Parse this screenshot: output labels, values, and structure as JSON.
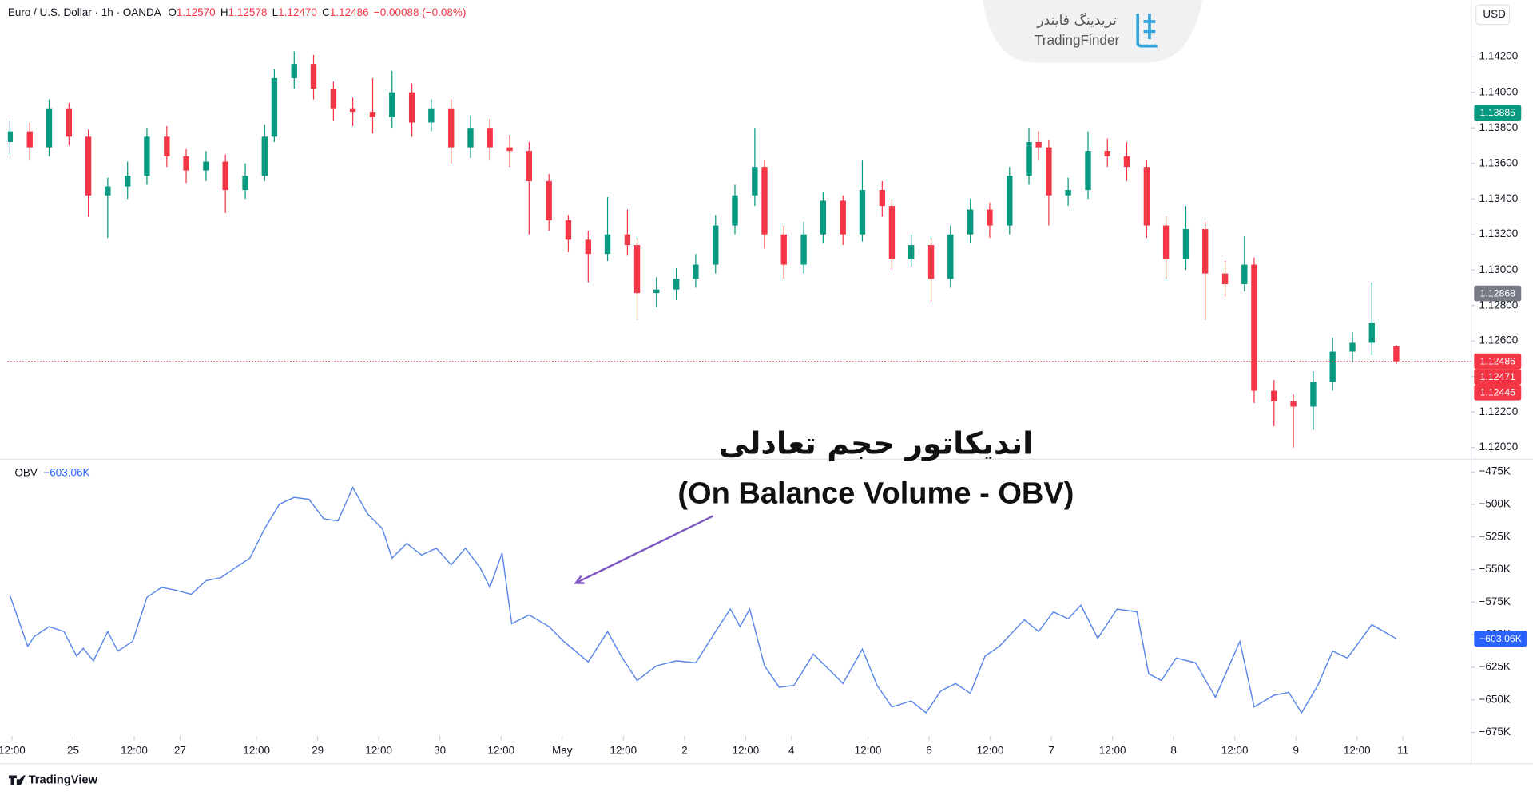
{
  "chart_data": [
    {
      "type": "candlestick",
      "title": "Euro / U.S. Dollar · 1h · OANDA",
      "legend": [
        {
          "name": "O",
          "value": 1.1257,
          "label": "1.12570"
        },
        {
          "name": "H",
          "value": 1.12578,
          "label": "1.12578"
        },
        {
          "name": "L",
          "value": 1.1247,
          "label": "1.12470"
        },
        {
          "name": "C",
          "value": 1.12486,
          "label": "1.12486"
        }
      ],
      "change": "−0.00088 (−0.08%)",
      "currency": "USD",
      "up_color": "#089981",
      "down_color": "#f23645",
      "xlim": [
        -0.8,
        286.4
      ],
      "ylim": [
        1.1194,
        1.1452
      ],
      "yticks": [
        {
          "value": 1.12,
          "label": "1.12000"
        },
        {
          "value": 1.122,
          "label": "1.12200"
        },
        {
          "value": 1.124,
          "label": "1.12400"
        },
        {
          "value": 1.126,
          "label": "1.12600"
        },
        {
          "value": 1.128,
          "label": "1.12800"
        },
        {
          "value": 1.13,
          "label": "1.13000"
        },
        {
          "value": 1.132,
          "label": "1.13200"
        },
        {
          "value": 1.134,
          "label": "1.13400"
        },
        {
          "value": 1.136,
          "label": "1.13600"
        },
        {
          "value": 1.138,
          "label": "1.13800"
        },
        {
          "value": 1.14,
          "label": "1.14000"
        },
        {
          "value": 1.142,
          "label": "1.14200"
        }
      ],
      "price_labels": [
        {
          "value": 1.13885,
          "color": "#089981"
        },
        {
          "value": 1.12868,
          "color": "#787b86"
        },
        {
          "value": 1.12486,
          "color": "#f23645"
        },
        {
          "value": 1.12471,
          "color": "#f23645"
        },
        {
          "value": 1.12446,
          "color": "#f23645"
        }
      ],
      "x": [
        -0.4,
        3.5,
        7.3,
        11.2,
        15,
        18.8,
        22.7,
        26.5,
        30.4,
        34.2,
        38.1,
        41.9,
        45.8,
        49.6,
        51.5,
        55.4,
        59.2,
        63.1,
        66.9,
        70.8,
        74.6,
        78.5,
        82.3,
        86.2,
        90,
        93.8,
        97.7,
        101.5,
        105.4,
        109.2,
        113.1,
        116.9,
        120.8,
        122.7,
        126.5,
        130.4,
        134.2,
        138.1,
        141.9,
        145.8,
        147.7,
        151.5,
        155.4,
        159.2,
        163.1,
        166.9,
        170.8,
        172.7,
        176.5,
        180.4,
        184.2,
        188.1,
        191.9,
        195.8,
        199.6,
        201.5,
        203.5,
        207.3,
        211.2,
        215,
        218.8,
        222.7,
        226.5,
        230.4,
        234.2,
        238.1,
        241.9,
        243.8,
        247.7,
        251.5,
        255.4,
        259.2,
        263.1,
        266.9,
        271.7
      ],
      "open": [
        1.1372,
        1.1378,
        1.1369,
        1.1391,
        1.1375,
        1.1342,
        1.1347,
        1.1353,
        1.1375,
        1.1364,
        1.1356,
        1.1361,
        1.1345,
        1.1353,
        1.1375,
        1.1408,
        1.1416,
        1.1402,
        1.1391,
        1.1389,
        1.1386,
        1.14,
        1.1383,
        1.1391,
        1.1369,
        1.138,
        1.1369,
        1.1367,
        1.135,
        1.1328,
        1.1317,
        1.1309,
        1.132,
        1.1314,
        1.1287,
        1.1289,
        1.1295,
        1.1303,
        1.1325,
        1.1342,
        1.1358,
        1.132,
        1.1303,
        1.132,
        1.1339,
        1.132,
        1.1345,
        1.1336,
        1.1306,
        1.1314,
        1.1295,
        1.132,
        1.1334,
        1.1325,
        1.1353,
        1.1372,
        1.1369,
        1.1342,
        1.1345,
        1.1367,
        1.1364,
        1.1358,
        1.1325,
        1.1306,
        1.1323,
        1.1298,
        1.1292,
        1.1303,
        1.1232,
        1.1226,
        1.1223,
        1.1237,
        1.1254,
        1.1259,
        1.1257
      ],
      "high": [
        1.1384,
        1.1383,
        1.1396,
        1.1394,
        1.1379,
        1.1352,
        1.1361,
        1.138,
        1.1381,
        1.1368,
        1.1367,
        1.1365,
        1.136,
        1.1382,
        1.1413,
        1.1423,
        1.1421,
        1.1406,
        1.1397,
        1.1408,
        1.1412,
        1.1405,
        1.1396,
        1.1396,
        1.1387,
        1.1385,
        1.1376,
        1.1372,
        1.1354,
        1.1331,
        1.1322,
        1.1341,
        1.1334,
        1.1318,
        1.1296,
        1.1301,
        1.1309,
        1.1331,
        1.1348,
        1.138,
        1.1362,
        1.1325,
        1.1327,
        1.1344,
        1.1342,
        1.1362,
        1.135,
        1.134,
        1.132,
        1.1318,
        1.1325,
        1.134,
        1.1338,
        1.1358,
        1.138,
        1.1378,
        1.1373,
        1.1352,
        1.1378,
        1.1374,
        1.1372,
        1.1362,
        1.133,
        1.1336,
        1.1327,
        1.1305,
        1.1319,
        1.1307,
        1.1238,
        1.123,
        1.1243,
        1.1262,
        1.1265,
        1.1293,
        1.12578
      ],
      "low": [
        1.1365,
        1.1362,
        1.1364,
        1.137,
        1.133,
        1.1318,
        1.134,
        1.1348,
        1.1358,
        1.1349,
        1.135,
        1.1332,
        1.134,
        1.135,
        1.1372,
        1.1402,
        1.1396,
        1.1384,
        1.1381,
        1.1377,
        1.138,
        1.1375,
        1.1378,
        1.136,
        1.1363,
        1.1362,
        1.1358,
        1.132,
        1.1322,
        1.131,
        1.1293,
        1.1305,
        1.1308,
        1.1272,
        1.1279,
        1.1283,
        1.129,
        1.1298,
        1.132,
        1.1336,
        1.1312,
        1.1295,
        1.1298,
        1.1315,
        1.1314,
        1.1316,
        1.133,
        1.13,
        1.1302,
        1.1282,
        1.129,
        1.1315,
        1.1318,
        1.132,
        1.1348,
        1.1362,
        1.1325,
        1.1336,
        1.134,
        1.1358,
        1.135,
        1.1318,
        1.1295,
        1.13,
        1.1272,
        1.1285,
        1.1288,
        1.1225,
        1.1212,
        1.12,
        1.121,
        1.1232,
        1.1248,
        1.1252,
        1.1247
      ],
      "close": [
        1.1378,
        1.1369,
        1.1391,
        1.1375,
        1.1342,
        1.1347,
        1.1353,
        1.1375,
        1.1364,
        1.1356,
        1.1361,
        1.1345,
        1.1353,
        1.1375,
        1.1408,
        1.1416,
        1.1402,
        1.1391,
        1.1389,
        1.1386,
        1.14,
        1.1383,
        1.1391,
        1.1369,
        1.138,
        1.1369,
        1.1367,
        1.135,
        1.1328,
        1.1317,
        1.1309,
        1.132,
        1.1314,
        1.1287,
        1.1289,
        1.1295,
        1.1303,
        1.1325,
        1.1342,
        1.1358,
        1.132,
        1.1303,
        1.132,
        1.1339,
        1.132,
        1.1345,
        1.1336,
        1.1306,
        1.1314,
        1.1295,
        1.132,
        1.1334,
        1.1325,
        1.1353,
        1.1372,
        1.1369,
        1.1342,
        1.1345,
        1.1367,
        1.1364,
        1.1358,
        1.1325,
        1.1306,
        1.1323,
        1.1298,
        1.1292,
        1.1303,
        1.1232,
        1.1226,
        1.1223,
        1.1237,
        1.1254,
        1.1259,
        1.127,
        1.12486
      ]
    },
    {
      "type": "line",
      "xlim": [
        -0.8,
        286.4
      ],
      "ylim": [
        -678,
        -466
      ],
      "yticks": [
        {
          "value": -475,
          "label": "−475K"
        },
        {
          "value": -500,
          "label": "−500K"
        },
        {
          "value": -525,
          "label": "−525K"
        },
        {
          "value": -550,
          "label": "−550K"
        },
        {
          "value": -575,
          "label": "−575K"
        },
        {
          "value": -600,
          "label": "−600K"
        },
        {
          "value": -625,
          "label": "−625K"
        },
        {
          "value": -650,
          "label": "−650K"
        },
        {
          "value": -675,
          "label": "−675K"
        }
      ],
      "xticks": [
        {
          "value": 0,
          "label": "12:00"
        },
        {
          "value": 12,
          "label": "25"
        },
        {
          "value": 24,
          "label": "12:00"
        },
        {
          "value": 33,
          "label": "27"
        },
        {
          "value": 48,
          "label": "12:00"
        },
        {
          "value": 60,
          "label": "29"
        },
        {
          "value": 72,
          "label": "12:00"
        },
        {
          "value": 84,
          "label": "30"
        },
        {
          "value": 96,
          "label": "12:00"
        },
        {
          "value": 108,
          "label": "May"
        },
        {
          "value": 120,
          "label": "12:00"
        },
        {
          "value": 132,
          "label": "2"
        },
        {
          "value": 144,
          "label": "12:00"
        },
        {
          "value": 153,
          "label": "4"
        },
        {
          "value": 168,
          "label": "12:00"
        },
        {
          "value": 180,
          "label": "6"
        },
        {
          "value": 192,
          "label": "12:00"
        },
        {
          "value": 204,
          "label": "7"
        },
        {
          "value": 216,
          "label": "12:00"
        },
        {
          "value": 228,
          "label": "8"
        },
        {
          "value": 240,
          "label": "12:00"
        },
        {
          "value": 252,
          "label": "9"
        },
        {
          "value": 264,
          "label": "12:00"
        },
        {
          "value": 273,
          "label": "11"
        }
      ],
      "current": {
        "value": -603.06,
        "label": "−603.06K",
        "color": "#2962ff"
      },
      "x": [
        -0.4,
        3.1,
        4.4,
        7.3,
        10.2,
        12.7,
        14,
        16,
        18.8,
        20.8,
        23.7,
        26.5,
        29.4,
        32.3,
        35.2,
        38.1,
        41,
        43.8,
        46.7,
        49.6,
        52.5,
        55.4,
        58.3,
        61.2,
        64,
        66.9,
        69.8,
        72.7,
        74.6,
        77.5,
        80.4,
        83.3,
        86.2,
        89,
        91.9,
        93.8,
        96.2,
        98.1,
        101.5,
        105.4,
        108.3,
        113.1,
        116.9,
        119.8,
        122.7,
        126.5,
        130.4,
        134.2,
        138.1,
        141,
        142.9,
        144.8,
        147.7,
        150.6,
        153.5,
        157.3,
        161.2,
        163.1,
        166.9,
        169.8,
        172.7,
        176.5,
        179.4,
        182.3,
        185.2,
        188.1,
        191,
        193.8,
        198.7,
        201.5,
        204.4,
        207.3,
        209.8,
        213.1,
        216.9,
        220.8,
        223.1,
        225.6,
        228.5,
        232.3,
        236.2,
        241,
        243.8,
        247.7,
        250.6,
        253.1,
        256.3,
        259.2,
        262.1,
        266.9,
        271.7
      ],
      "series": [
        {
          "name": "OBV",
          "color": "#5b87e8",
          "values": [
            -569.8,
            -608.9,
            -601.3,
            -593.8,
            -597.6,
            -616.4,
            -610.4,
            -620.1,
            -597.6,
            -612.6,
            -605.1,
            -571.3,
            -563.7,
            -566,
            -569,
            -558.5,
            -556.2,
            -548.7,
            -541.2,
            -518.6,
            -499.8,
            -494.6,
            -496.1,
            -511.1,
            -512.6,
            -487,
            -507.3,
            -518.6,
            -541.2,
            -529.9,
            -538.9,
            -533.6,
            -546.4,
            -533.6,
            -548.7,
            -563.7,
            -537.4,
            -591.6,
            -584.8,
            -593.8,
            -605.1,
            -620.9,
            -597.6,
            -617.9,
            -635.2,
            -623.9,
            -620.1,
            -621.6,
            -597.6,
            -580.3,
            -593.8,
            -580.3,
            -623.9,
            -640.4,
            -638.9,
            -614.9,
            -630,
            -637.5,
            -611.1,
            -638.9,
            -655.5,
            -650.9,
            -660,
            -643.2,
            -637.5,
            -645,
            -616.4,
            -608.9,
            -588.6,
            -597.6,
            -582.5,
            -587.8,
            -577.3,
            -602.8,
            -580.3,
            -582.5,
            -630,
            -635.2,
            -617.9,
            -621.6,
            -648,
            -605.1,
            -655.5,
            -646.5,
            -644.3,
            -660,
            -638.9,
            -612.6,
            -617.9,
            -592.3,
            -603.06
          ]
        }
      ]
    }
  ],
  "watermark": {
    "fa": "تریدینگ فایندر",
    "en": "TradingFinder"
  },
  "overlay": {
    "title_fa": "اندیکاتور حجم تعادلی",
    "title_en": "(On Balance Volume - OBV)"
  },
  "footer": "TradingView"
}
